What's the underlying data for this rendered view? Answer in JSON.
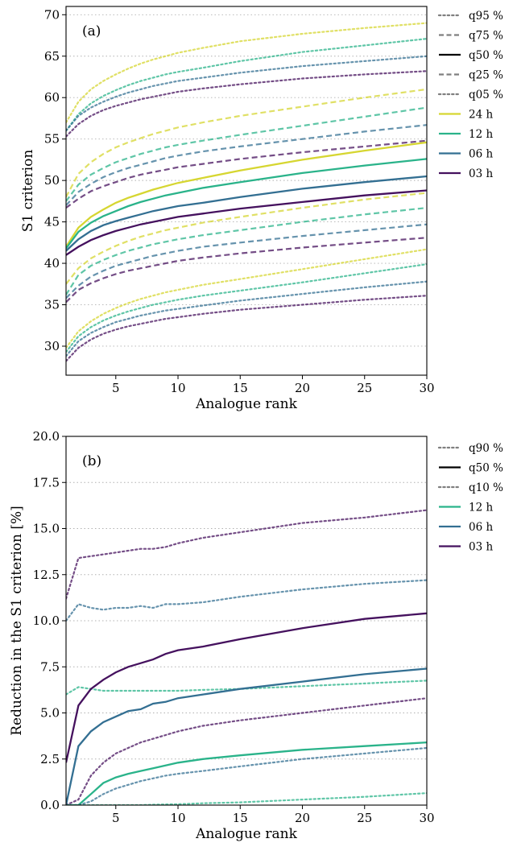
{
  "colors": {
    "24 h": "#d6d631",
    "12 h": "#2ab38a",
    "06 h": "#336f92",
    "03 h": "#45115e",
    "legend_quantile": "#7f7f7f",
    "legend_median": "#000000",
    "grid": "#b0b0b0"
  },
  "chart_data": [
    {
      "type": "line",
      "panel_label": "(a)",
      "xlabel": "Analogue rank",
      "ylabel": "S1 criterion",
      "xlim": [
        1,
        30
      ],
      "ylim": [
        26.5,
        71
      ],
      "xticks": [
        5,
        10,
        15,
        20,
        25,
        30
      ],
      "yticks": [
        30,
        35,
        40,
        45,
        50,
        55,
        60,
        65,
        70
      ],
      "grid": "horizontal dotted",
      "legend_position": "right, outside",
      "legend": [
        {
          "label": "q95 %",
          "style": "dotted",
          "color_key": "legend_quantile"
        },
        {
          "label": "q75 %",
          "style": "dashed",
          "color_key": "legend_quantile"
        },
        {
          "label": "q50 %",
          "style": "solid",
          "color_key": "legend_median"
        },
        {
          "label": "q25 %",
          "style": "dashed",
          "color_key": "legend_quantile"
        },
        {
          "label": "q05 %",
          "style": "dotted",
          "color_key": "legend_quantile"
        },
        {
          "label": "24 h",
          "style": "solid",
          "color_key": "24 h"
        },
        {
          "label": "12 h",
          "style": "solid",
          "color_key": "12 h"
        },
        {
          "label": "06 h",
          "style": "solid",
          "color_key": "06 h"
        },
        {
          "label": "03 h",
          "style": "solid",
          "color_key": "03 h"
        }
      ],
      "x": [
        1,
        2,
        3,
        4,
        5,
        6,
        7,
        8,
        9,
        10,
        12,
        15,
        20,
        25,
        30
      ],
      "series": [
        {
          "name": "24 h",
          "quantile": "q95 %",
          "style": "dotted",
          "color_key": "24 h",
          "values": [
            57.0,
            59.5,
            61.0,
            62.0,
            62.8,
            63.5,
            64.1,
            64.6,
            65.0,
            65.4,
            66.0,
            66.8,
            67.7,
            68.4,
            69.0
          ]
        },
        {
          "name": "12 h",
          "quantile": "q95 %",
          "style": "dotted",
          "color_key": "12 h",
          "values": [
            56.0,
            58.0,
            59.3,
            60.2,
            60.9,
            61.5,
            62.0,
            62.4,
            62.8,
            63.1,
            63.6,
            64.4,
            65.5,
            66.3,
            67.1
          ]
        },
        {
          "name": "06 h",
          "quantile": "q95 %",
          "style": "dotted",
          "color_key": "06 h",
          "values": [
            56.0,
            57.8,
            58.8,
            59.5,
            60.1,
            60.6,
            61.0,
            61.4,
            61.7,
            62.0,
            62.4,
            63.0,
            63.8,
            64.4,
            65.0
          ]
        },
        {
          "name": "03 h",
          "quantile": "q95 %",
          "style": "dotted",
          "color_key": "03 h",
          "values": [
            55.3,
            56.8,
            57.8,
            58.5,
            59.0,
            59.4,
            59.8,
            60.1,
            60.4,
            60.7,
            61.1,
            61.6,
            62.3,
            62.8,
            63.2
          ]
        },
        {
          "name": "24 h",
          "quantile": "q75 %",
          "style": "dashed",
          "color_key": "24 h",
          "values": [
            48.0,
            50.8,
            52.2,
            53.2,
            54.0,
            54.6,
            55.1,
            55.6,
            56.0,
            56.4,
            57.0,
            57.8,
            58.9,
            60.0,
            61.0
          ]
        },
        {
          "name": "12 h",
          "quantile": "q75 %",
          "style": "dashed",
          "color_key": "12 h",
          "values": [
            47.5,
            49.5,
            50.7,
            51.5,
            52.2,
            52.7,
            53.2,
            53.6,
            54.0,
            54.3,
            54.8,
            55.5,
            56.6,
            57.7,
            58.8
          ]
        },
        {
          "name": "06 h",
          "quantile": "q75 %",
          "style": "dashed",
          "color_key": "06 h",
          "values": [
            47.0,
            48.6,
            49.6,
            50.4,
            51.0,
            51.5,
            51.9,
            52.3,
            52.7,
            53.0,
            53.5,
            54.1,
            55.0,
            55.9,
            56.7
          ]
        },
        {
          "name": "03 h",
          "quantile": "q75 %",
          "style": "dashed",
          "color_key": "03 h",
          "values": [
            46.7,
            47.8,
            48.7,
            49.3,
            49.8,
            50.3,
            50.7,
            51.0,
            51.3,
            51.6,
            52.0,
            52.6,
            53.4,
            54.1,
            54.8
          ]
        },
        {
          "name": "24 h",
          "quantile": "q50 %",
          "style": "solid",
          "color_key": "24 h",
          "values": [
            42.0,
            44.3,
            45.6,
            46.5,
            47.3,
            47.9,
            48.4,
            48.9,
            49.3,
            49.7,
            50.3,
            51.2,
            52.5,
            53.6,
            54.6
          ]
        },
        {
          "name": "12 h",
          "quantile": "q50 %",
          "style": "solid",
          "color_key": "12 h",
          "values": [
            41.8,
            43.8,
            44.9,
            45.7,
            46.3,
            46.9,
            47.4,
            47.8,
            48.2,
            48.5,
            49.1,
            49.8,
            50.9,
            51.8,
            52.6
          ]
        },
        {
          "name": "06 h",
          "quantile": "q50 %",
          "style": "solid",
          "color_key": "06 h",
          "values": [
            41.5,
            42.9,
            43.9,
            44.6,
            45.1,
            45.5,
            45.9,
            46.3,
            46.6,
            46.9,
            47.3,
            48.0,
            49.0,
            49.8,
            50.5
          ]
        },
        {
          "name": "03 h",
          "quantile": "q50 %",
          "style": "solid",
          "color_key": "03 h",
          "values": [
            41.0,
            42.0,
            42.8,
            43.4,
            43.9,
            44.3,
            44.7,
            45.0,
            45.3,
            45.6,
            46.0,
            46.6,
            47.4,
            48.2,
            48.8
          ]
        },
        {
          "name": "24 h",
          "quantile": "q25 %",
          "style": "dashed",
          "color_key": "24 h",
          "values": [
            37.5,
            39.4,
            40.6,
            41.4,
            42.1,
            42.7,
            43.2,
            43.6,
            44.0,
            44.3,
            44.9,
            45.6,
            46.7,
            47.7,
            48.5
          ]
        },
        {
          "name": "12 h",
          "quantile": "q25 %",
          "style": "dashed",
          "color_key": "12 h",
          "values": [
            36.2,
            38.6,
            39.7,
            40.4,
            41.0,
            41.5,
            41.9,
            42.3,
            42.6,
            42.9,
            43.4,
            44.0,
            45.0,
            45.9,
            46.7
          ]
        },
        {
          "name": "06 h",
          "quantile": "q25 %",
          "style": "dashed",
          "color_key": "06 h",
          "values": [
            35.8,
            37.3,
            38.4,
            39.1,
            39.7,
            40.1,
            40.5,
            40.9,
            41.2,
            41.5,
            42.0,
            42.5,
            43.3,
            44.0,
            44.7
          ]
        },
        {
          "name": "03 h",
          "quantile": "q25 %",
          "style": "dashed",
          "color_key": "03 h",
          "values": [
            35.3,
            36.8,
            37.6,
            38.2,
            38.7,
            39.1,
            39.4,
            39.7,
            40.0,
            40.3,
            40.7,
            41.2,
            41.9,
            42.5,
            43.1
          ]
        },
        {
          "name": "24 h",
          "quantile": "q05 %",
          "style": "dotted",
          "color_key": "24 h",
          "values": [
            29.8,
            31.8,
            33.0,
            33.9,
            34.6,
            35.2,
            35.7,
            36.1,
            36.5,
            36.8,
            37.4,
            38.1,
            39.3,
            40.5,
            41.7
          ]
        },
        {
          "name": "12 h",
          "quantile": "q05 %",
          "style": "dotted",
          "color_key": "12 h",
          "values": [
            29.3,
            31.2,
            32.3,
            33.1,
            33.7,
            34.2,
            34.6,
            35.0,
            35.3,
            35.6,
            36.1,
            36.7,
            37.7,
            38.8,
            39.9
          ]
        },
        {
          "name": "06 h",
          "quantile": "q05 %",
          "style": "dotted",
          "color_key": "06 h",
          "values": [
            28.8,
            30.6,
            31.6,
            32.3,
            32.9,
            33.3,
            33.7,
            34.0,
            34.3,
            34.5,
            34.9,
            35.5,
            36.3,
            37.1,
            37.8
          ]
        },
        {
          "name": "03 h",
          "quantile": "q05 %",
          "style": "dotted",
          "color_key": "03 h",
          "values": [
            28.2,
            29.8,
            30.8,
            31.5,
            32.0,
            32.4,
            32.7,
            33.0,
            33.3,
            33.5,
            33.9,
            34.4,
            35.0,
            35.6,
            36.1
          ]
        }
      ]
    },
    {
      "type": "line",
      "panel_label": "(b)",
      "xlabel": "Analogue rank",
      "ylabel": "Reduction in the S1 criterion [%]",
      "xlim": [
        1,
        30
      ],
      "ylim": [
        0,
        20
      ],
      "xticks": [
        5,
        10,
        15,
        20,
        25,
        30
      ],
      "yticks": [
        "0.0",
        "2.5",
        "5.0",
        "7.5",
        "10.0",
        "12.5",
        "15.0",
        "17.5",
        "20.0"
      ],
      "grid": "horizontal dotted",
      "legend_position": "right, outside",
      "legend": [
        {
          "label": "q90 %",
          "style": "dotted",
          "color_key": "legend_quantile"
        },
        {
          "label": "q50 %",
          "style": "solid",
          "color_key": "legend_median"
        },
        {
          "label": "q10 %",
          "style": "dotted",
          "color_key": "legend_quantile"
        },
        {
          "label": "12 h",
          "style": "solid",
          "color_key": "12 h"
        },
        {
          "label": "06 h",
          "style": "solid",
          "color_key": "06 h"
        },
        {
          "label": "03 h",
          "style": "solid",
          "color_key": "03 h"
        }
      ],
      "x": [
        1,
        2,
        3,
        4,
        5,
        6,
        7,
        8,
        9,
        10,
        12,
        15,
        20,
        25,
        30
      ],
      "series": [
        {
          "name": "03 h",
          "quantile": "q90 %",
          "style": "dotted",
          "color_key": "03 h",
          "values": [
            11.2,
            13.4,
            13.5,
            13.6,
            13.7,
            13.8,
            13.9,
            13.9,
            14.0,
            14.2,
            14.5,
            14.8,
            15.3,
            15.6,
            16.0
          ]
        },
        {
          "name": "06 h",
          "quantile": "q90 %",
          "style": "dotted",
          "color_key": "06 h",
          "values": [
            10.0,
            10.9,
            10.7,
            10.6,
            10.7,
            10.7,
            10.8,
            10.7,
            10.9,
            10.9,
            11.0,
            11.3,
            11.7,
            12.0,
            12.2
          ]
        },
        {
          "name": "12 h",
          "quantile": "q90 %",
          "style": "dotted",
          "color_key": "12 h",
          "values": [
            6.0,
            6.4,
            6.3,
            6.2,
            6.2,
            6.2,
            6.2,
            6.2,
            6.2,
            6.2,
            6.25,
            6.3,
            6.45,
            6.6,
            6.75
          ]
        },
        {
          "name": "03 h",
          "quantile": "q50 %",
          "style": "solid",
          "color_key": "03 h",
          "values": [
            2.3,
            5.4,
            6.3,
            6.8,
            7.2,
            7.5,
            7.7,
            7.9,
            8.2,
            8.4,
            8.6,
            9.0,
            9.6,
            10.1,
            10.4
          ]
        },
        {
          "name": "06 h",
          "quantile": "q50 %",
          "style": "solid",
          "color_key": "06 h",
          "values": [
            0.0,
            3.2,
            4.0,
            4.5,
            4.8,
            5.1,
            5.2,
            5.5,
            5.6,
            5.8,
            6.0,
            6.3,
            6.7,
            7.1,
            7.4
          ]
        },
        {
          "name": "12 h",
          "quantile": "q50 %",
          "style": "solid",
          "color_key": "12 h",
          "values": [
            0.0,
            0.0,
            0.6,
            1.2,
            1.5,
            1.7,
            1.85,
            2.0,
            2.15,
            2.3,
            2.5,
            2.7,
            3.0,
            3.2,
            3.4
          ]
        },
        {
          "name": "03 h",
          "quantile": "q10 %",
          "style": "dotted",
          "color_key": "03 h",
          "values": [
            0.0,
            0.3,
            1.6,
            2.3,
            2.8,
            3.1,
            3.4,
            3.6,
            3.8,
            4.0,
            4.3,
            4.6,
            5.0,
            5.4,
            5.8
          ]
        },
        {
          "name": "06 h",
          "quantile": "q10 %",
          "style": "dotted",
          "color_key": "06 h",
          "values": [
            0.0,
            0.0,
            0.2,
            0.6,
            0.9,
            1.1,
            1.3,
            1.45,
            1.6,
            1.7,
            1.85,
            2.1,
            2.5,
            2.8,
            3.1
          ]
        },
        {
          "name": "12 h",
          "quantile": "q10 %",
          "style": "dotted",
          "color_key": "12 h",
          "values": [
            0.0,
            0.0,
            0.0,
            0.0,
            0.0,
            0.0,
            0.0,
            0.02,
            0.04,
            0.05,
            0.1,
            0.15,
            0.3,
            0.45,
            0.65
          ]
        }
      ]
    }
  ]
}
